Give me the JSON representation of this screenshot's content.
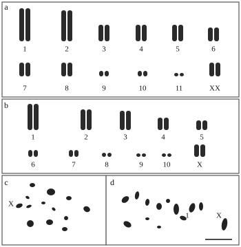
{
  "panel_a": {
    "label": "a",
    "row1": [
      "1",
      "2",
      "3",
      "4",
      "5",
      "6"
    ],
    "row2": [
      "7",
      "8",
      "9",
      "10",
      "11",
      "XX"
    ]
  },
  "panel_b": {
    "label": "b",
    "row1": [
      "1",
      "2",
      "3",
      "4",
      "5"
    ],
    "row2": [
      "6",
      "7",
      "8",
      "9",
      "10",
      "X"
    ]
  },
  "panel_c": {
    "label": "c",
    "marker": "X"
  },
  "panel_d": {
    "label": "d",
    "markers": [
      "1",
      "X"
    ]
  }
}
